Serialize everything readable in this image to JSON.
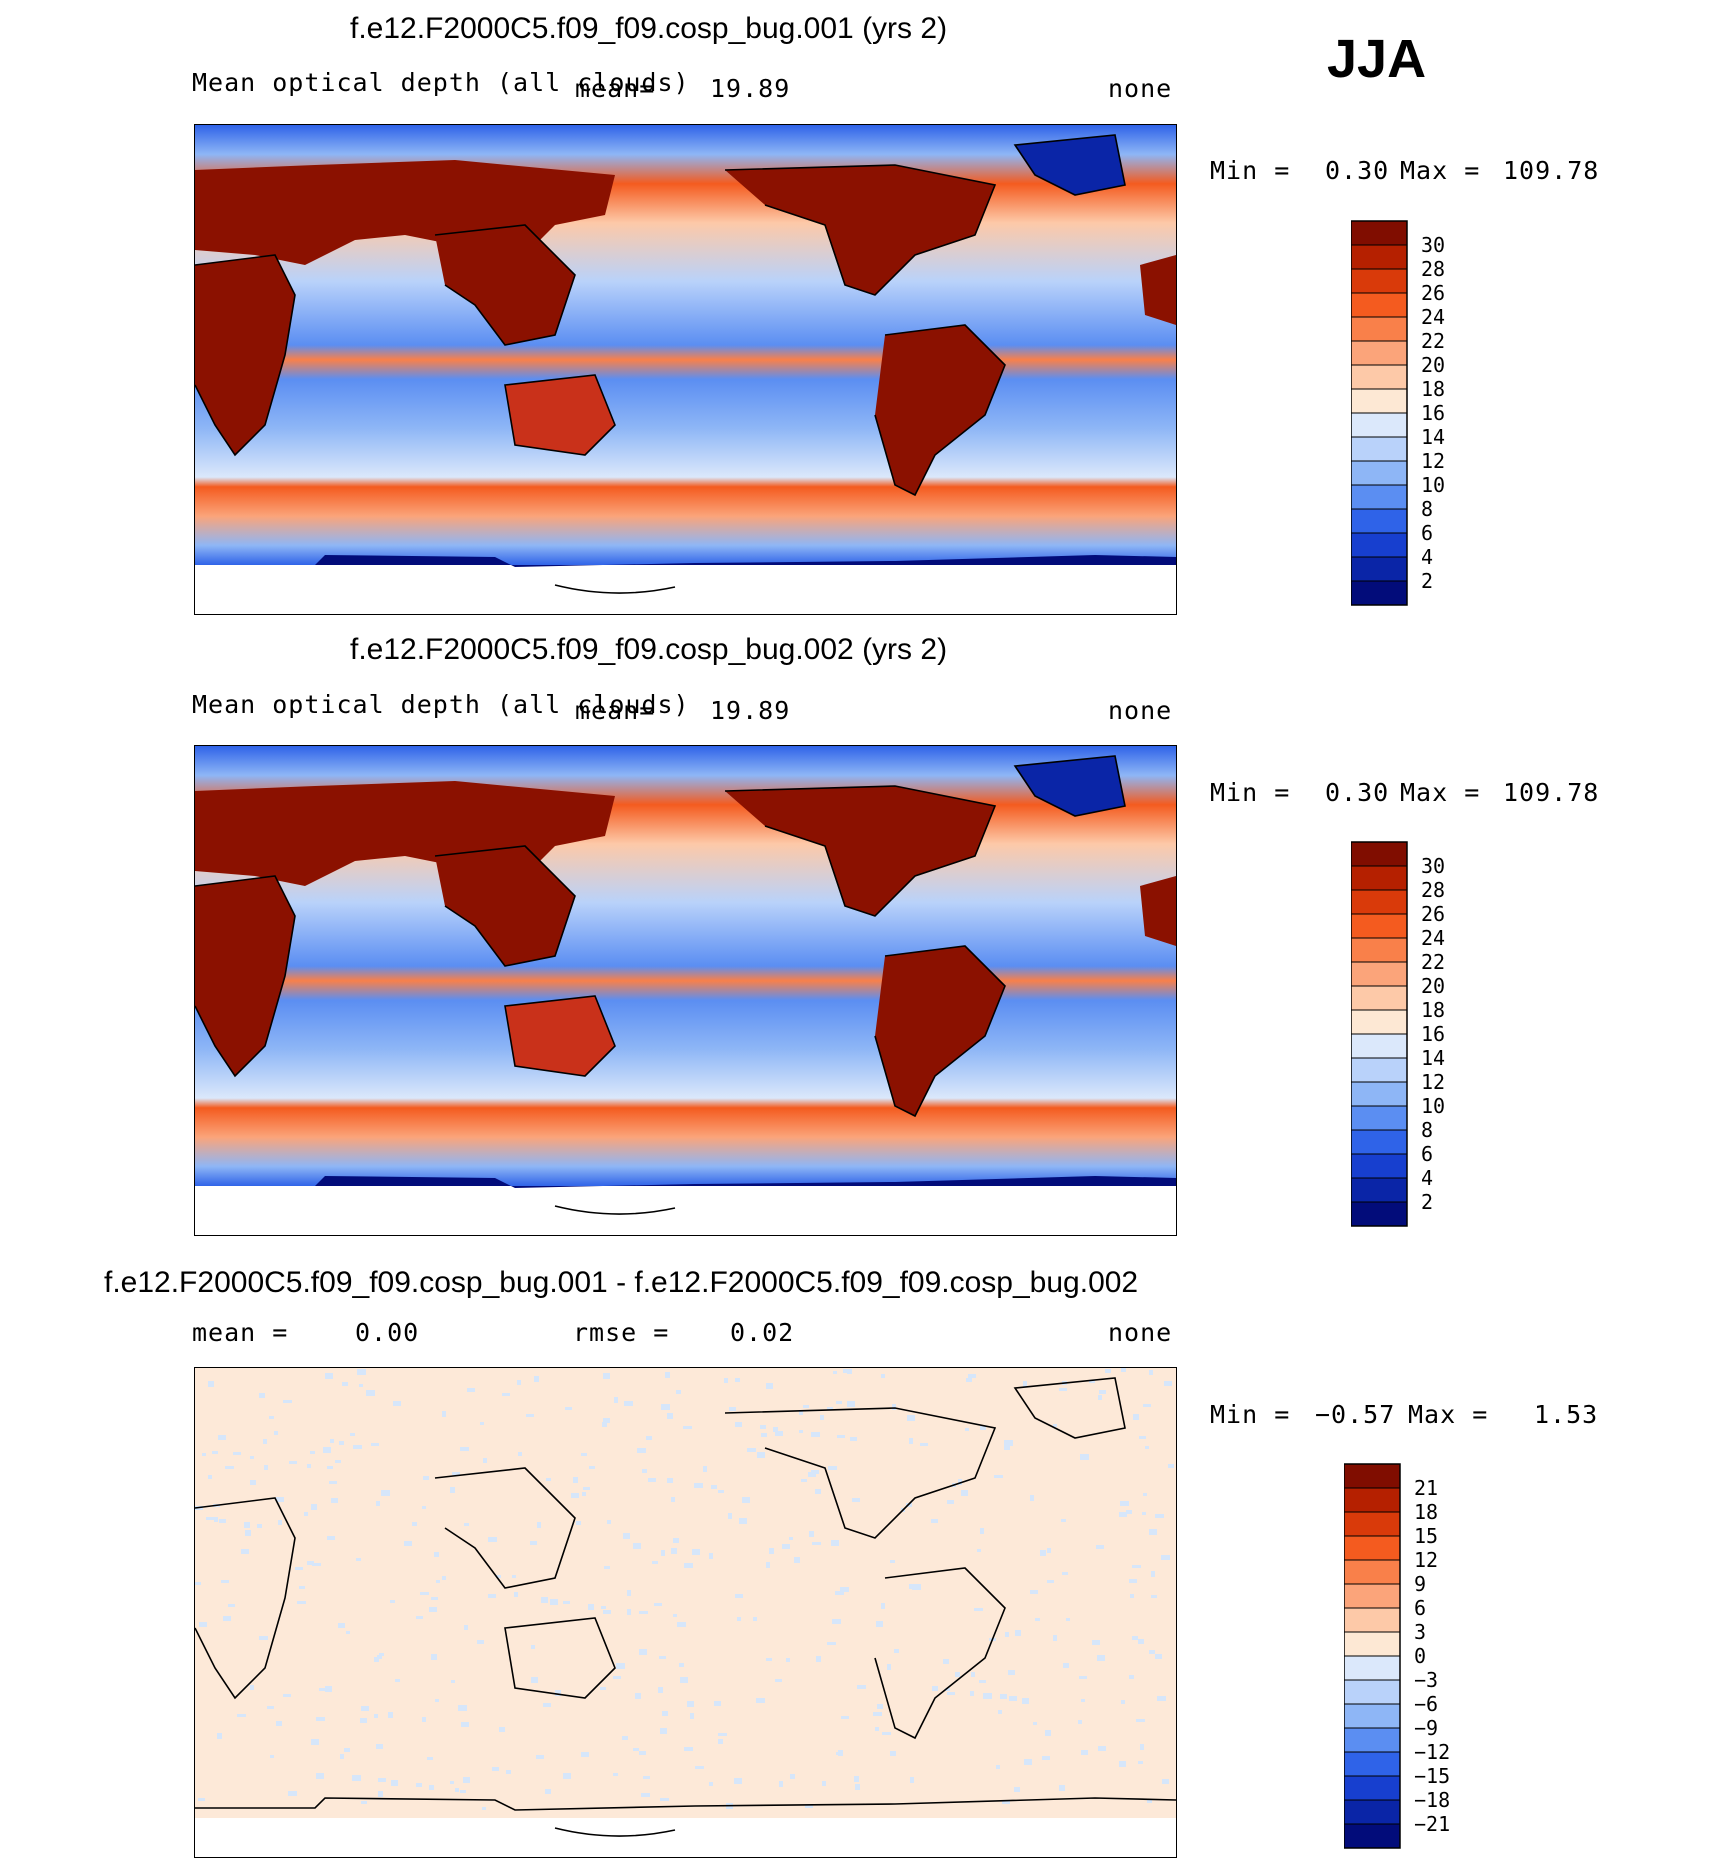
{
  "season": "JJA",
  "colors": {
    "land": "#8b1100",
    "ocean_mid": "#6a98f0",
    "antarctic": "#061a8a",
    "diff_bg": "#fde9d8",
    "diff_spots": "#d6e6fa"
  },
  "chart_data": [
    {
      "type": "heatmap",
      "id": "panel1",
      "title": "f.e12.F2000C5.f09_f09.cosp_bug.001 (yrs 2)",
      "variable": "Mean optical depth (all clouds)",
      "stat_label": "mean",
      "stat_value": "19.89",
      "units": "none",
      "min_label": "Min",
      "min": "0.30",
      "max_label": "Max",
      "max": "109.78",
      "colorbar": {
        "ticks": [
          "30",
          "28",
          "26",
          "24",
          "22",
          "20",
          "18",
          "16",
          "14",
          "12",
          "10",
          "8",
          "6",
          "4",
          "2"
        ],
        "colors": [
          "#800d00",
          "#b52000",
          "#d93a0a",
          "#f45b1f",
          "#f9804a",
          "#fba47a",
          "#fdc9a8",
          "#fde8d4",
          "#dbe8fb",
          "#b9d2fa",
          "#8eb6f6",
          "#5b8ef2",
          "#2f63e8",
          "#173fcf",
          "#0a25a7",
          "#020c7a"
        ]
      }
    },
    {
      "type": "heatmap",
      "id": "panel2",
      "title": "f.e12.F2000C5.f09_f09.cosp_bug.002 (yrs 2)",
      "variable": "Mean optical depth (all clouds)",
      "stat_label": "mean",
      "stat_value": "19.89",
      "units": "none",
      "min_label": "Min",
      "min": "0.30",
      "max_label": "Max",
      "max": "109.78",
      "colorbar": {
        "ticks": [
          "30",
          "28",
          "26",
          "24",
          "22",
          "20",
          "18",
          "16",
          "14",
          "12",
          "10",
          "8",
          "6",
          "4",
          "2"
        ],
        "colors": [
          "#800d00",
          "#b52000",
          "#d93a0a",
          "#f45b1f",
          "#f9804a",
          "#fba47a",
          "#fdc9a8",
          "#fde8d4",
          "#dbe8fb",
          "#b9d2fa",
          "#8eb6f6",
          "#5b8ef2",
          "#2f63e8",
          "#173fcf",
          "#0a25a7",
          "#020c7a"
        ]
      }
    },
    {
      "type": "heatmap",
      "id": "panel3",
      "title": "f.e12.F2000C5.f09_f09.cosp_bug.001 - f.e12.F2000C5.f09_f09.cosp_bug.002",
      "mean_label": "mean",
      "mean_value": "0.00",
      "rmse_label": "rmse",
      "rmse_value": "0.02",
      "units": "none",
      "min_label": "Min",
      "min": "−0.57",
      "max_label": "Max",
      "max": "1.53",
      "colorbar": {
        "ticks": [
          "21",
          "18",
          "15",
          "12",
          "9",
          "6",
          "3",
          "0",
          "−3",
          "−6",
          "−9",
          "−12",
          "−15",
          "−18",
          "−21"
        ],
        "colors": [
          "#800d00",
          "#b52000",
          "#d93a0a",
          "#f45b1f",
          "#f9804a",
          "#fba47a",
          "#fdc9a8",
          "#fde8d4",
          "#dbe8fb",
          "#b9d2fa",
          "#8eb6f6",
          "#5b8ef2",
          "#2f63e8",
          "#173fcf",
          "#0a25a7",
          "#020c7a"
        ]
      }
    }
  ]
}
